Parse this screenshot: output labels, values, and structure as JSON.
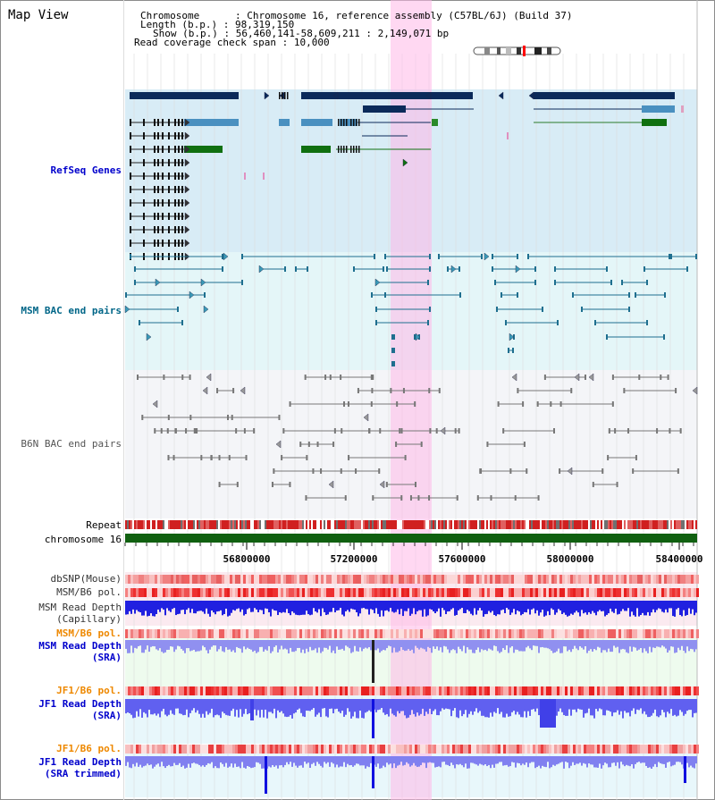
{
  "view": {
    "title": "Map View",
    "chromosome_key": "Chromosome",
    "chromosome_value": "Chromosome 16, reference assembly (C57BL/6J) (Build 37)",
    "length_key": "Length (b.p.)",
    "length_value": "98,319,150",
    "show_key": "Show (b.p.)",
    "show_value": "56,460,141-58,609,211 : 2,149,071 bp",
    "coverage_key": "Read coverage check span",
    "coverage_value": "10,000"
  },
  "tracks": {
    "refseq": "RefSeq Genes",
    "msm_bac": "MSM BAC end pairs",
    "b6n_bac": "B6N BAC end pairs",
    "repeat": "Repeat",
    "chromosome": "chromosome 16",
    "dbsnp": "dbSNP(Mouse)",
    "msm_b6_pol": "MSM/B6 pol.",
    "msm_depth_cap_1": "MSM Read Depth",
    "msm_depth_cap_2": "(Capillary)",
    "msm_b6_pol_2": "MSM/B6 pol.",
    "msm_depth_sra_1": "MSM Read Depth",
    "msm_depth_sra_2": "(SRA)",
    "jf1_b6_pol": "JF1/B6 pol.",
    "jf1_depth_sra_1": "JF1 Read Depth",
    "jf1_depth_sra_2": "(SRA)",
    "jf1_b6_pol_2": "JF1/B6 pol.",
    "jf1_depth_trim_1": "JF1 Read Depth",
    "jf1_depth_trim_2": "(SRA trimmed)"
  },
  "axis": {
    "ticks": [
      "56800000",
      "57200000",
      "57600000",
      "58000000",
      "58400000"
    ]
  },
  "colors": {
    "refseq_label": "#0000cc",
    "msm_bac_label": "#006688",
    "b6n_label": "#555555",
    "orange_label": "#ee8800",
    "highlight": "#ffd6ee"
  }
}
